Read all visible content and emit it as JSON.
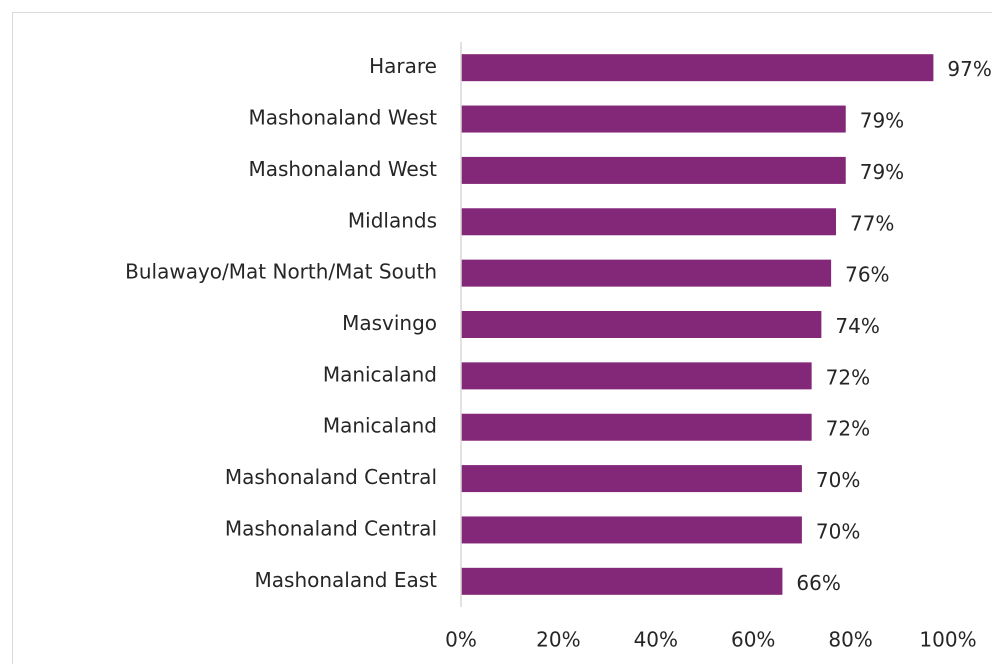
{
  "chart_data": {
    "type": "bar",
    "orientation": "horizontal",
    "categories": [
      "Harare",
      "Mashonaland West",
      "Mashonaland West",
      "Midlands",
      "Bulawayo/Mat North/Mat South",
      "Masvingo",
      "Manicaland",
      "Manicaland",
      "Mashonaland Central",
      "Mashonaland Central",
      "Mashonaland East"
    ],
    "values": [
      97,
      79,
      79,
      77,
      76,
      74,
      72,
      72,
      70,
      70,
      66
    ],
    "value_labels": [
      "97%",
      "79%",
      "79%",
      "77%",
      "76%",
      "74%",
      "72%",
      "72%",
      "70%",
      "70%",
      "66%"
    ],
    "color": "#832878",
    "xlim": [
      0,
      100
    ],
    "xticks": [
      {
        "value": 0,
        "label": "0%"
      },
      {
        "value": 20,
        "label": "20%"
      },
      {
        "value": 40,
        "label": "40%"
      },
      {
        "value": 60,
        "label": "60%"
      },
      {
        "value": 80,
        "label": "80%"
      },
      {
        "value": 100,
        "label": "100%"
      }
    ],
    "grid": false
  }
}
